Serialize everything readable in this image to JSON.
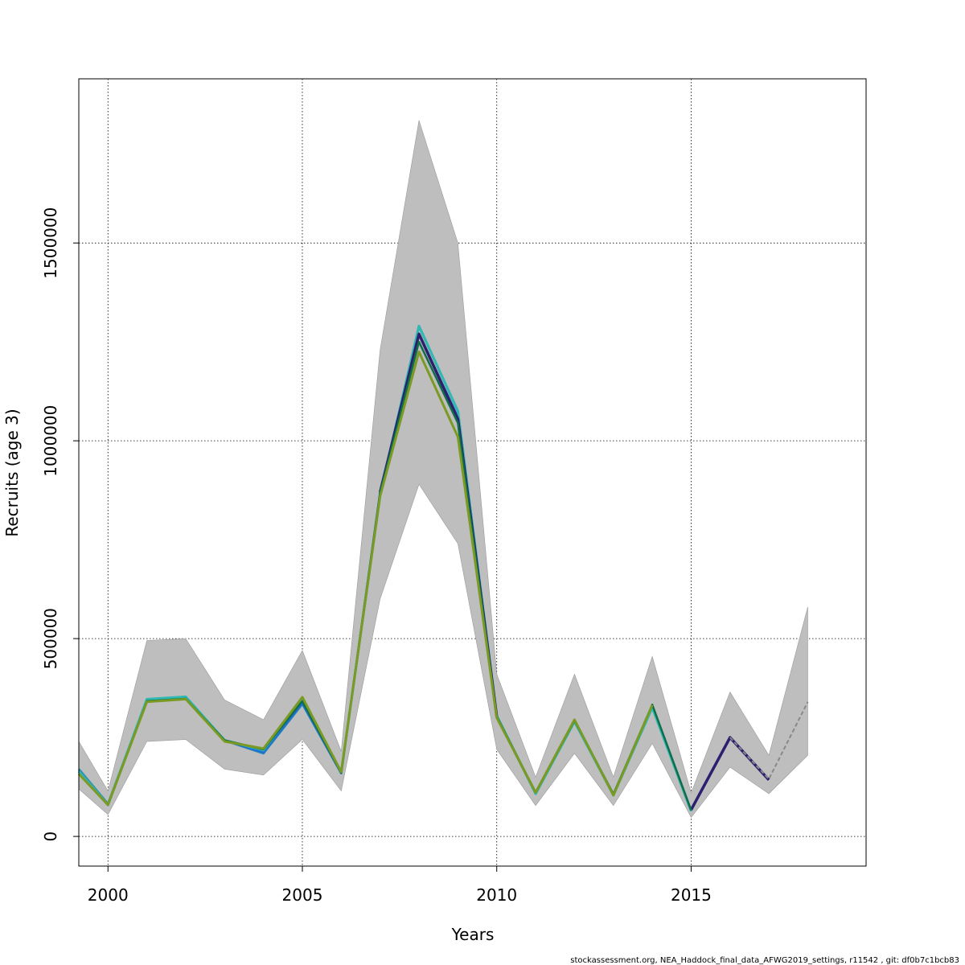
{
  "chart_data": {
    "type": "line",
    "title": "",
    "xlabel": "Years",
    "ylabel": "Recruits (age 3)",
    "xlim": [
      1999.25,
      2019.5
    ],
    "ylim": [
      -75000,
      1915000
    ],
    "x_ticks": [
      2000,
      2005,
      2010,
      2015
    ],
    "y_ticks": [
      0,
      500000,
      1000000,
      1500000
    ],
    "x_tick_labels": [
      "2000",
      "2005",
      "2010",
      "2015"
    ],
    "y_tick_labels": [
      "0",
      "500000",
      "1000000",
      "1500000"
    ],
    "grid": true,
    "x": [
      1999.25,
      2000,
      2001,
      2002,
      2003,
      2004,
      2005,
      2006,
      2007,
      2008,
      2009,
      2010,
      2011,
      2012,
      2013,
      2014,
      2015,
      2016,
      2017,
      2018
    ],
    "band": {
      "color": "#bebebe",
      "upper": [
        240000,
        115000,
        495000,
        500000,
        345000,
        295000,
        470000,
        215000,
        1230000,
        1810000,
        1500000,
        410000,
        150000,
        410000,
        150000,
        455000,
        110000,
        365000,
        205000,
        580000
      ],
      "lower": [
        120000,
        55000,
        240000,
        245000,
        170000,
        155000,
        245000,
        115000,
        600000,
        890000,
        740000,
        220000,
        78000,
        210000,
        78000,
        235000,
        48000,
        175000,
        108000,
        205000
      ]
    },
    "series": [
      {
        "color": "#2e8fb0",
        "width": 3,
        "values": [
          170000,
          82000,
          345000,
          352000,
          243000,
          210000,
          335000,
          160000,
          865000,
          1290000,
          1075000,
          305000,
          108000,
          292000,
          105000,
          328000,
          65000,
          null,
          null,
          null
        ]
      },
      {
        "color": "#1f6bd6",
        "width": 2.5,
        "values": [
          165000,
          80000,
          342000,
          350000,
          242000,
          212000,
          337000,
          160000,
          870000,
          1270000,
          1060000,
          303000,
          110000,
          293000,
          106000,
          330000,
          66000,
          248000,
          null,
          null
        ]
      },
      {
        "color": "#30b8b2",
        "width": 3,
        "values": [
          164000,
          80000,
          347000,
          353000,
          243000,
          218000,
          345000,
          162000,
          865000,
          1290000,
          1075000,
          305000,
          108000,
          290000,
          104000,
          325000,
          64000,
          null,
          null,
          null
        ]
      },
      {
        "color": "#2b1f6e",
        "width": 3.5,
        "values": [
          null,
          null,
          null,
          null,
          null,
          null,
          null,
          null,
          870000,
          1270000,
          1055000,
          303000,
          null,
          null,
          null,
          null,
          67000,
          250000,
          143000,
          null
        ]
      },
      {
        "color": "#0f6e4a",
        "width": 2.5,
        "values": [
          158000,
          79000,
          342000,
          348000,
          243000,
          220000,
          342000,
          161000,
          870000,
          1250000,
          1045000,
          303000,
          111000,
          293000,
          107000,
          333000,
          66000,
          null,
          null,
          null
        ]
      },
      {
        "color": "#7a9a24",
        "width": 3,
        "values": [
          158000,
          80000,
          340000,
          347000,
          240000,
          222000,
          352000,
          163000,
          860000,
          1225000,
          1010000,
          300000,
          111000,
          295000,
          104000,
          332000,
          null,
          null,
          null,
          null
        ]
      },
      {
        "color": "#888888",
        "width": 2,
        "dash": "5 3",
        "values": [
          null,
          null,
          null,
          null,
          null,
          null,
          null,
          null,
          null,
          null,
          null,
          null,
          null,
          null,
          null,
          null,
          null,
          250000,
          145000,
          340000
        ]
      }
    ]
  },
  "footer": "stockassessment.org, NEA_Haddock_final_data_AFWG2019_settings, r11542 , git: df0b7c1bcb83"
}
